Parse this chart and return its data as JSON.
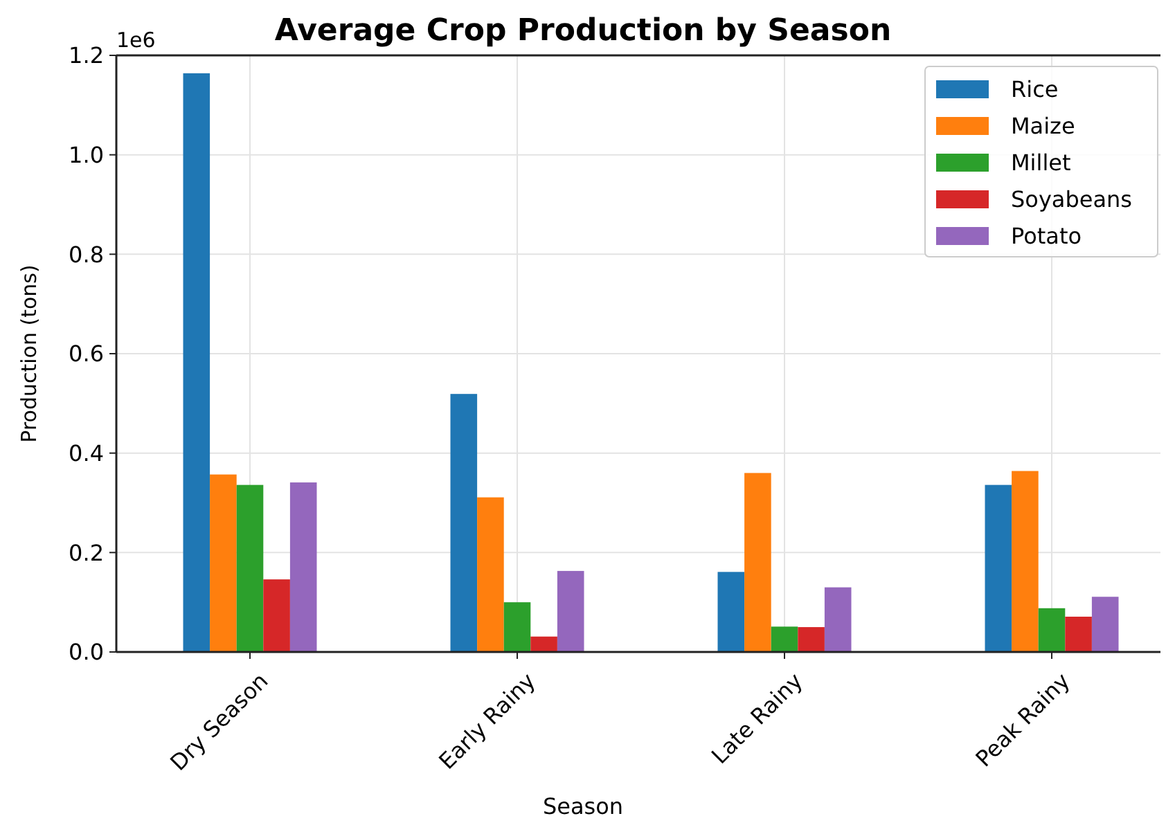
{
  "chart_data": {
    "type": "bar",
    "title": "Average Crop Production by Season",
    "xlabel": "Season",
    "ylabel": "Production (tons)",
    "annotations": [
      "1e6"
    ],
    "categories": [
      "Dry Season",
      "Early Rainy",
      "Late Rainy",
      "Peak Rainy"
    ],
    "series": [
      {
        "name": "Rice",
        "color": "#1f77b4",
        "values": [
          1.164,
          0.519,
          0.161,
          0.336
        ]
      },
      {
        "name": "Maize",
        "color": "#ff7f0e",
        "values": [
          0.357,
          0.311,
          0.36,
          0.364
        ]
      },
      {
        "name": "Millet",
        "color": "#2ca02c",
        "values": [
          0.336,
          0.1,
          0.051,
          0.088
        ]
      },
      {
        "name": "Soyabeans",
        "color": "#d62728",
        "values": [
          0.146,
          0.031,
          0.05,
          0.071
        ]
      },
      {
        "name": "Potato",
        "color": "#9467bd",
        "values": [
          0.341,
          0.163,
          0.13,
          0.111
        ]
      }
    ],
    "ylim": [
      0,
      1.2
    ],
    "yticks": [
      {
        "value": 0,
        "label": "0.0"
      },
      0.2,
      0.4,
      0.6,
      0.8,
      {
        "value": 1,
        "label": "1.0"
      },
      1.2
    ],
    "grid": true,
    "legend": "top right"
  }
}
